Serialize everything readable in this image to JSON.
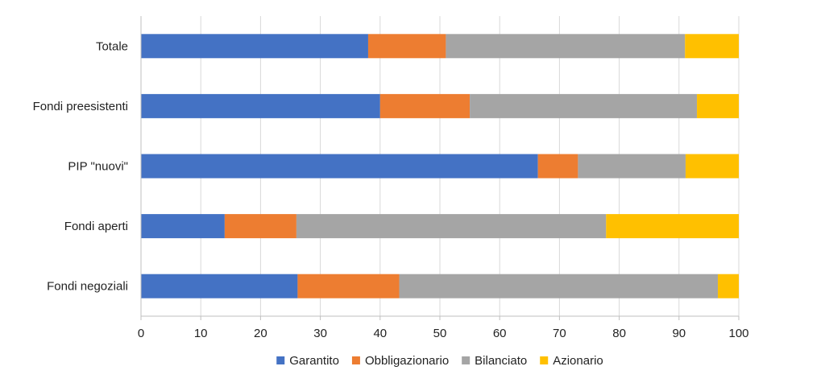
{
  "chart_data": {
    "type": "bar",
    "orientation": "horizontal",
    "stacked": true,
    "categories": [
      "Fondi negoziali",
      "Fondi aperti",
      "PIP \"nuovi\"",
      "Fondi preesistenti",
      "Totale"
    ],
    "series": [
      {
        "name": "Garantito",
        "color": "#4472C4",
        "values": [
          26.2,
          14.0,
          66.4,
          40.0,
          38.0
        ]
      },
      {
        "name": "Obbligazionario",
        "color": "#ED7D31",
        "values": [
          17.0,
          12.0,
          6.7,
          15.0,
          13.0
        ]
      },
      {
        "name": "Bilanciato",
        "color": "#A5A5A5",
        "values": [
          53.3,
          51.8,
          18.0,
          38.0,
          40.0
        ]
      },
      {
        "name": "Azionario",
        "color": "#FFC000",
        "values": [
          3.5,
          22.2,
          8.9,
          7.0,
          9.0
        ]
      }
    ],
    "xlim": [
      0,
      100
    ],
    "xticks": [
      "0",
      "10",
      "20",
      "30",
      "40",
      "50",
      "60",
      "70",
      "80",
      "90",
      "100"
    ],
    "xlabel": "",
    "ylabel": "",
    "title": "",
    "grid": true,
    "legend_position": "bottom"
  }
}
